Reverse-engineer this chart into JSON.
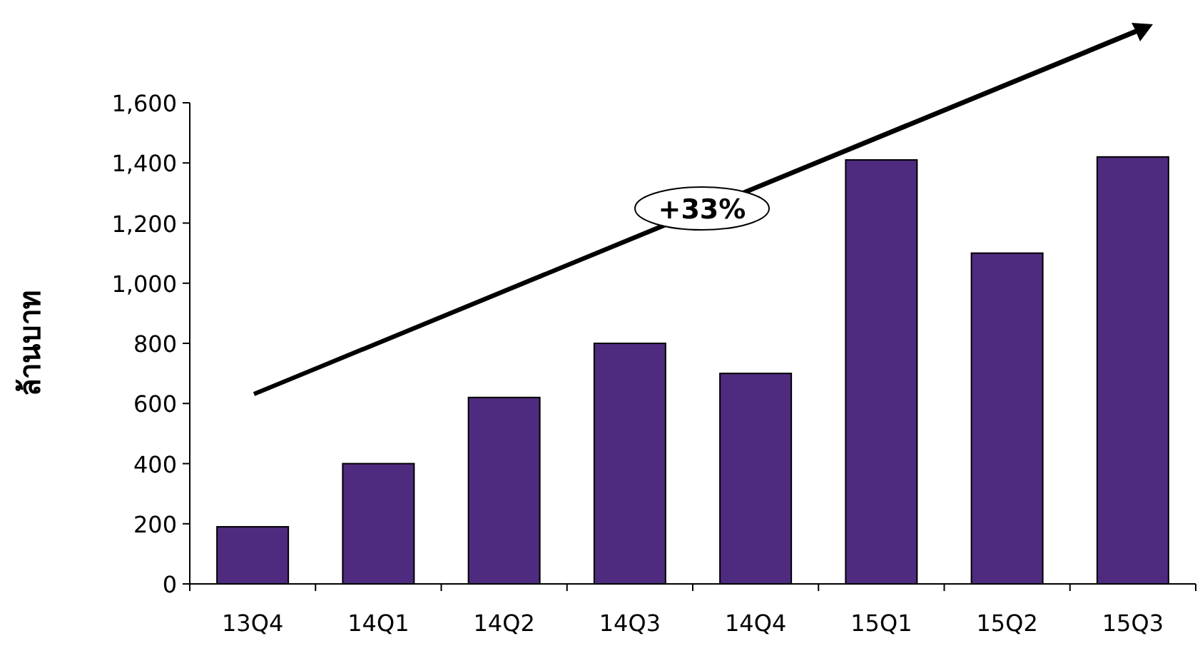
{
  "chart_data": {
    "type": "bar",
    "ylabel": "ล้านบาท",
    "categories": [
      "13Q4",
      "14Q1",
      "14Q2",
      "14Q3",
      "14Q4",
      "15Q1",
      "15Q2",
      "15Q3"
    ],
    "values": [
      190,
      400,
      620,
      800,
      700,
      1410,
      1100,
      1420
    ],
    "color": "#4f2b7f",
    "ylim": [
      0,
      1600
    ],
    "yticks": [
      0,
      200,
      400,
      600,
      800,
      {
        "value": 1000,
        "label": "1,000"
      },
      {
        "value": 1200,
        "label": "1,200"
      },
      {
        "value": 1400,
        "label": "1,400"
      },
      {
        "value": 1600,
        "label": "1,600"
      }
    ],
    "grid": false,
    "annotations": [
      "+33%"
    ]
  }
}
